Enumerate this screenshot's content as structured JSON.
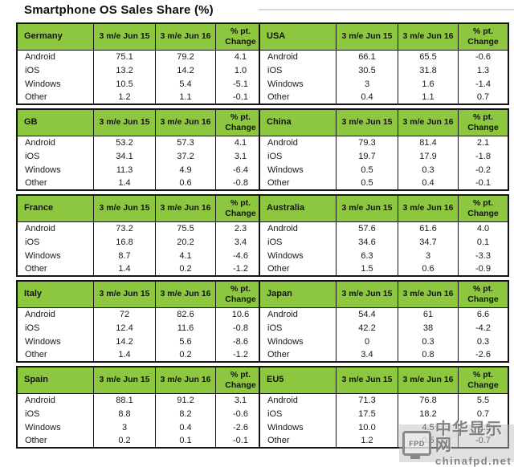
{
  "chart_data": {
    "type": "table",
    "title": "Smartphone OS Sales Share (%)",
    "columns": [
      "3 m/e Jun 15",
      "3 m/e Jun 16",
      "% pt. Change"
    ],
    "os_labels": [
      "Android",
      "iOS",
      "Windows",
      "Other"
    ],
    "tables": {
      "left": [
        {
          "country": "Germany",
          "rows": [
            {
              "os": "Android",
              "jun15": "75.1",
              "jun16": "79.2",
              "change": "4.1"
            },
            {
              "os": "iOS",
              "jun15": "13.2",
              "jun16": "14.2",
              "change": "1.0"
            },
            {
              "os": "Windows",
              "jun15": "10.5",
              "jun16": "5.4",
              "change": "-5.1"
            },
            {
              "os": "Other",
              "jun15": "1.2",
              "jun16": "1.1",
              "change": "-0.1"
            }
          ]
        },
        {
          "country": "GB",
          "rows": [
            {
              "os": "Android",
              "jun15": "53.2",
              "jun16": "57.3",
              "change": "4.1"
            },
            {
              "os": "iOS",
              "jun15": "34.1",
              "jun16": "37.2",
              "change": "3.1"
            },
            {
              "os": "Windows",
              "jun15": "11.3",
              "jun16": "4.9",
              "change": "-6.4"
            },
            {
              "os": "Other",
              "jun15": "1.4",
              "jun16": "0.6",
              "change": "-0.8"
            }
          ]
        },
        {
          "country": "France",
          "rows": [
            {
              "os": "Android",
              "jun15": "73.2",
              "jun16": "75.5",
              "change": "2.3"
            },
            {
              "os": "iOS",
              "jun15": "16.8",
              "jun16": "20.2",
              "change": "3.4"
            },
            {
              "os": "Windows",
              "jun15": "8.7",
              "jun16": "4.1",
              "change": "-4.6"
            },
            {
              "os": "Other",
              "jun15": "1.4",
              "jun16": "0.2",
              "change": "-1.2"
            }
          ]
        },
        {
          "country": "Italy",
          "rows": [
            {
              "os": "Android",
              "jun15": "72",
              "jun16": "82.6",
              "change": "10.6"
            },
            {
              "os": "iOS",
              "jun15": "12.4",
              "jun16": "11.6",
              "change": "-0.8"
            },
            {
              "os": "Windows",
              "jun15": "14.2",
              "jun16": "5.6",
              "change": "-8.6"
            },
            {
              "os": "Other",
              "jun15": "1.4",
              "jun16": "0.2",
              "change": "-1.2"
            }
          ]
        },
        {
          "country": "Spain",
          "rows": [
            {
              "os": "Android",
              "jun15": "88.1",
              "jun16": "91.2",
              "change": "3.1"
            },
            {
              "os": "iOS",
              "jun15": "8.8",
              "jun16": "8.2",
              "change": "-0.6"
            },
            {
              "os": "Windows",
              "jun15": "3",
              "jun16": "0.4",
              "change": "-2.6"
            },
            {
              "os": "Other",
              "jun15": "0.2",
              "jun16": "0.1",
              "change": "-0.1"
            }
          ]
        }
      ],
      "right": [
        {
          "country": "USA",
          "rows": [
            {
              "os": "Android",
              "jun15": "66.1",
              "jun16": "65.5",
              "change": "-0.6"
            },
            {
              "os": "iOS",
              "jun15": "30.5",
              "jun16": "31.8",
              "change": "1.3"
            },
            {
              "os": "Windows",
              "jun15": "3",
              "jun16": "1.6",
              "change": "-1.4"
            },
            {
              "os": "Other",
              "jun15": "0.4",
              "jun16": "1.1",
              "change": "0.7"
            }
          ]
        },
        {
          "country": "China",
          "rows": [
            {
              "os": "Android",
              "jun15": "79.3",
              "jun16": "81.4",
              "change": "2.1"
            },
            {
              "os": "iOS",
              "jun15": "19.7",
              "jun16": "17.9",
              "change": "-1.8"
            },
            {
              "os": "Windows",
              "jun15": "0.5",
              "jun16": "0.3",
              "change": "-0.2"
            },
            {
              "os": "Other",
              "jun15": "0.5",
              "jun16": "0.4",
              "change": "-0.1"
            }
          ]
        },
        {
          "country": "Australia",
          "rows": [
            {
              "os": "Android",
              "jun15": "57.6",
              "jun16": "61.6",
              "change": "4.0"
            },
            {
              "os": "iOS",
              "jun15": "34.6",
              "jun16": "34.7",
              "change": "0.1"
            },
            {
              "os": "Windows",
              "jun15": "6.3",
              "jun16": "3",
              "change": "-3.3"
            },
            {
              "os": "Other",
              "jun15": "1.5",
              "jun16": "0.6",
              "change": "-0.9"
            }
          ]
        },
        {
          "country": "Japan",
          "rows": [
            {
              "os": "Android",
              "jun15": "54.4",
              "jun16": "61",
              "change": "6.6"
            },
            {
              "os": "iOS",
              "jun15": "42.2",
              "jun16": "38",
              "change": "-4.2"
            },
            {
              "os": "Windows",
              "jun15": "0",
              "jun16": "0.3",
              "change": "0.3"
            },
            {
              "os": "Other",
              "jun15": "3.4",
              "jun16": "0.8",
              "change": "-2.6"
            }
          ]
        },
        {
          "country": "EU5",
          "rows": [
            {
              "os": "Android",
              "jun15": "71.3",
              "jun16": "76.8",
              "change": "5.5"
            },
            {
              "os": "iOS",
              "jun15": "17.5",
              "jun16": "18.2",
              "change": "0.7"
            },
            {
              "os": "Windows",
              "jun15": "10.0",
              "jun16": "4.5",
              "change": "-5.5"
            },
            {
              "os": "Other",
              "jun15": "1.2",
              "jun16": "0.5",
              "change": "-0.7"
            }
          ]
        }
      ]
    },
    "layout": {
      "grid": "off",
      "legend": "none"
    }
  },
  "watermark": {
    "site_name": "中华显示网",
    "site_url": "chinafpd.net",
    "logo_text": "FPD"
  },
  "colors": {
    "header_green": "#8DC63F",
    "border": "#141414",
    "watermark_gray": "#bebebe"
  }
}
